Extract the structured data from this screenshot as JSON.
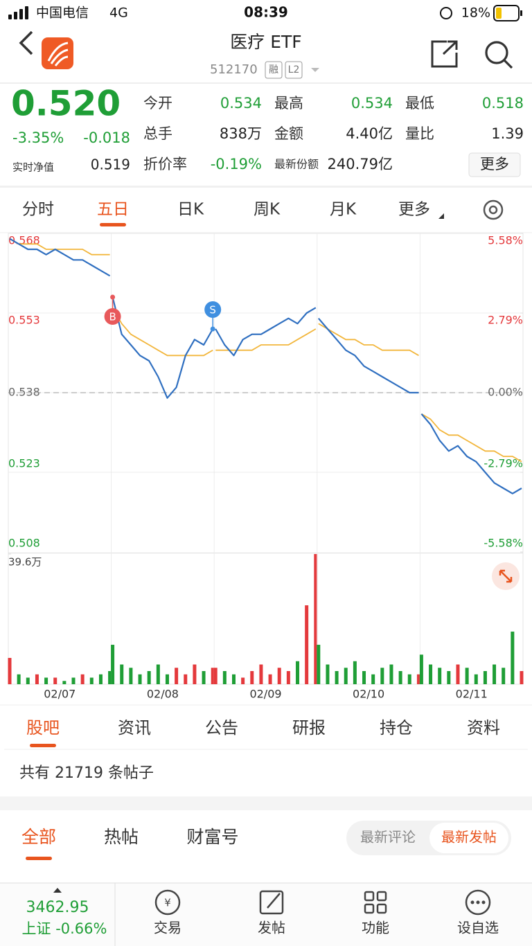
{
  "status_bar": {
    "carrier": "中国电信",
    "network": "4G",
    "time": "08:39",
    "battery": "18%"
  },
  "header": {
    "title": "医疗 ETF",
    "code": "512170",
    "badges": [
      "融",
      "L2"
    ]
  },
  "quote": {
    "price": "0.520",
    "change_pct": "-3.35%",
    "change": "-0.018",
    "nav_label": "实时净值",
    "nav": "0.519",
    "color": "#1f9e36",
    "fields": [
      [
        {
          "label": "今开",
          "value": "0.534",
          "color": "#1f9e36"
        },
        {
          "label": "最高",
          "value": "0.534",
          "color": "#1f9e36"
        },
        {
          "label": "最低",
          "value": "0.518",
          "color": "#1f9e36"
        }
      ],
      [
        {
          "label": "总手",
          "value": "838万",
          "color": "#222222"
        },
        {
          "label": "金额",
          "value": "4.40亿",
          "color": "#222222"
        },
        {
          "label": "量比",
          "value": "1.39",
          "color": "#222222"
        }
      ],
      [
        {
          "label": "折价率",
          "value": "-0.19%",
          "color": "#1f9e36"
        },
        {
          "label": "最新份额",
          "value": "240.79亿",
          "color": "#222222"
        }
      ]
    ],
    "more": "更多"
  },
  "tabs": {
    "items": [
      "分时",
      "五日",
      "日K",
      "周K",
      "月K",
      "更多"
    ],
    "active": 1
  },
  "chart_data": {
    "type": "line",
    "ylim": [
      0.508,
      0.568
    ],
    "yticks": [
      0.568,
      0.553,
      0.538,
      0.523,
      0.508
    ],
    "y2lim": [
      -5.58,
      5.58
    ],
    "y2ticks": [
      {
        "value": 5.58,
        "label": "5.58%"
      },
      {
        "value": 2.79,
        "label": "2.79%"
      },
      {
        "value": 0,
        "label": "0.00%"
      },
      {
        "value": -2.79,
        "label": "-2.79%"
      },
      {
        "value": -5.58,
        "label": "-5.58%"
      }
    ],
    "baseline": 0.538,
    "vlim": [
      0,
      39.6
    ],
    "vticks": [
      {
        "value": 39.6,
        "label": "39.6万"
      }
    ],
    "price_color": "#2f6fc0",
    "avg_color": "#f2b63c",
    "up_color": "#e4393c",
    "down_color": "#1f9e36",
    "flat_color": "#666666",
    "days": [
      {
        "label": "02/07",
        "price": [
          0.567,
          0.566,
          0.565,
          0.565,
          0.564,
          0.565,
          0.564,
          0.563,
          0.563,
          0.562,
          0.561,
          0.56
        ],
        "avg": [
          0.567,
          0.566,
          0.566,
          0.566,
          0.565,
          0.565,
          0.565,
          0.565,
          0.565,
          0.564,
          0.564,
          0.564
        ],
        "volume": [
          8,
          3,
          2,
          3,
          2,
          2,
          1,
          2,
          3,
          2,
          3,
          4
        ]
      },
      {
        "label": "02/08",
        "price": [
          0.556,
          0.549,
          0.547,
          0.545,
          0.544,
          0.541,
          0.537,
          0.539,
          0.545,
          0.548,
          0.547,
          0.55
        ],
        "avg": [
          0.554,
          0.551,
          0.549,
          0.548,
          0.547,
          0.546,
          0.545,
          0.545,
          0.545,
          0.545,
          0.545,
          0.546
        ],
        "volume": [
          12,
          6,
          5,
          3,
          4,
          6,
          3,
          5,
          3,
          6,
          4,
          5
        ]
      },
      {
        "label": "02/09",
        "price": [
          0.55,
          0.547,
          0.545,
          0.548,
          0.549,
          0.549,
          0.55,
          0.551,
          0.552,
          0.551,
          0.553,
          0.554
        ],
        "avg": [
          0.546,
          0.546,
          0.546,
          0.546,
          0.546,
          0.547,
          0.547,
          0.547,
          0.547,
          0.548,
          0.549,
          0.55
        ],
        "volume": [
          5,
          4,
          3,
          2,
          4,
          6,
          3,
          5,
          4,
          7,
          24,
          39.6
        ]
      },
      {
        "label": "02/10",
        "price": [
          0.552,
          0.55,
          0.548,
          0.546,
          0.545,
          0.543,
          0.542,
          0.541,
          0.54,
          0.539,
          0.538,
          0.538
        ],
        "avg": [
          0.551,
          0.55,
          0.549,
          0.548,
          0.548,
          0.547,
          0.547,
          0.546,
          0.546,
          0.546,
          0.546,
          0.545
        ],
        "volume": [
          12,
          6,
          4,
          5,
          7,
          4,
          3,
          5,
          6,
          4,
          3,
          3
        ]
      },
      {
        "label": "02/11",
        "price": [
          0.534,
          0.532,
          0.529,
          0.527,
          0.528,
          0.526,
          0.525,
          0.523,
          0.521,
          0.52,
          0.519,
          0.52
        ],
        "avg": [
          0.534,
          0.533,
          0.531,
          0.53,
          0.53,
          0.529,
          0.528,
          0.527,
          0.527,
          0.526,
          0.526,
          0.525
        ],
        "volume": [
          9,
          6,
          5,
          4,
          6,
          5,
          3,
          4,
          6,
          5,
          16,
          4
        ]
      }
    ],
    "annotations": [
      {
        "label": "B",
        "day": 1,
        "point": 0,
        "color": "#e8595b"
      },
      {
        "label": "S",
        "day": 1,
        "point": 11,
        "color": "#3f8fe0"
      }
    ]
  },
  "feed_tabs": {
    "items": [
      "股吧",
      "资讯",
      "公告",
      "研报",
      "持仓",
      "资料"
    ],
    "active": 0
  },
  "post_count": "共有 21719 条帖子",
  "filters": {
    "items": [
      "全部",
      "热帖",
      "财富号"
    ],
    "active": 0,
    "sort": [
      "最新评论",
      "最新发帖"
    ],
    "sort_active": 1
  },
  "bottom_bar": {
    "index_value": "3462.95",
    "index_name": "上证 -0.66%",
    "items": [
      "交易",
      "发帖",
      "功能",
      "设自选"
    ]
  }
}
